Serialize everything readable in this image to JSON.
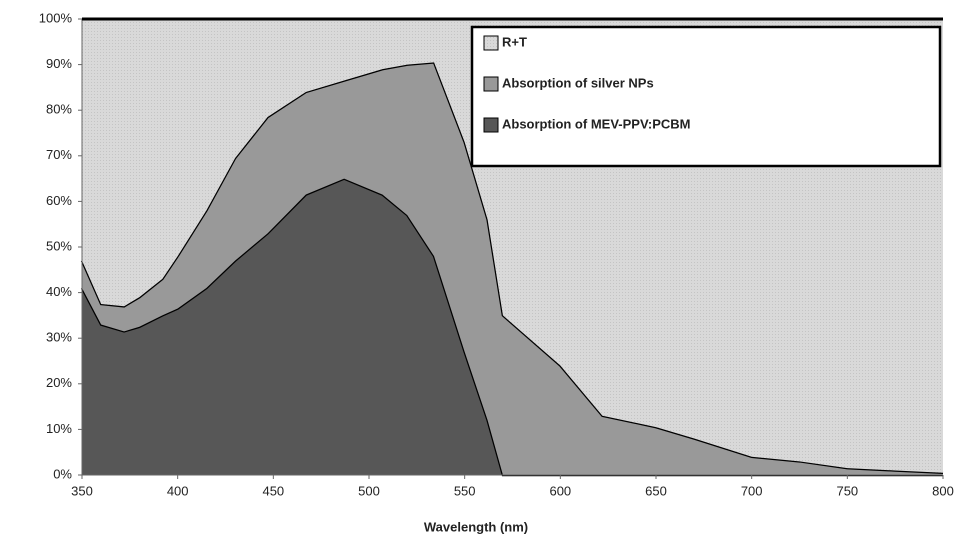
{
  "chart_data": {
    "type": "stacked-area",
    "x_label": "Wavelength (nm)",
    "x": [
      350,
      360,
      372,
      380,
      392,
      400,
      415,
      430,
      447,
      467,
      487,
      507,
      520,
      534,
      550,
      562,
      570,
      600,
      622,
      650,
      670,
      700,
      725,
      750,
      775,
      800
    ],
    "series": [
      {
        "name": "R+T",
        "color": "#d9d9d9",
        "values": [
          53,
          62.5,
          63,
          61,
          57,
          52,
          42,
          30.5,
          21.5,
          16,
          13.5,
          11,
          10,
          9.5,
          27,
          44,
          65,
          76,
          87,
          89.5,
          92,
          96,
          97,
          98.5,
          99,
          99.5
        ]
      },
      {
        "name": "Absorption of silver NPs",
        "color": "#999999",
        "values": [
          6,
          4.5,
          5.5,
          6.5,
          8,
          11.5,
          17,
          22.5,
          25.5,
          22.5,
          21.5,
          27.5,
          33,
          42.5,
          46,
          44,
          35,
          24,
          13,
          10.5,
          8,
          4,
          3,
          1.5,
          1,
          0.5
        ]
      },
      {
        "name": "Absorption of MEV-PPV:PCBM",
        "color": "#575757",
        "values": [
          41,
          33,
          31.5,
          32.5,
          35,
          36.5,
          41,
          47,
          53,
          61.5,
          65,
          61.5,
          57,
          48,
          27,
          12,
          0,
          0,
          0,
          0,
          0,
          0,
          0,
          0,
          0,
          0
        ]
      }
    ],
    "xlim": [
      350,
      800
    ],
    "xticks": [
      350,
      400,
      450,
      500,
      550,
      600,
      650,
      700,
      750,
      800
    ],
    "ylim": [
      0,
      100
    ],
    "yticks": [
      {
        "value": 0,
        "label": "0%"
      },
      {
        "value": 10,
        "label": "10%"
      },
      {
        "value": 20,
        "label": "20%"
      },
      {
        "value": 30,
        "label": "30%"
      },
      {
        "value": 40,
        "label": "40%"
      },
      {
        "value": 50,
        "label": "50%"
      },
      {
        "value": 60,
        "label": "60%"
      },
      {
        "value": 70,
        "label": "70%"
      },
      {
        "value": 80,
        "label": "80%"
      },
      {
        "value": 90,
        "label": "90%"
      },
      {
        "value": 100,
        "label": "100%"
      }
    ],
    "legend": "top-right"
  }
}
